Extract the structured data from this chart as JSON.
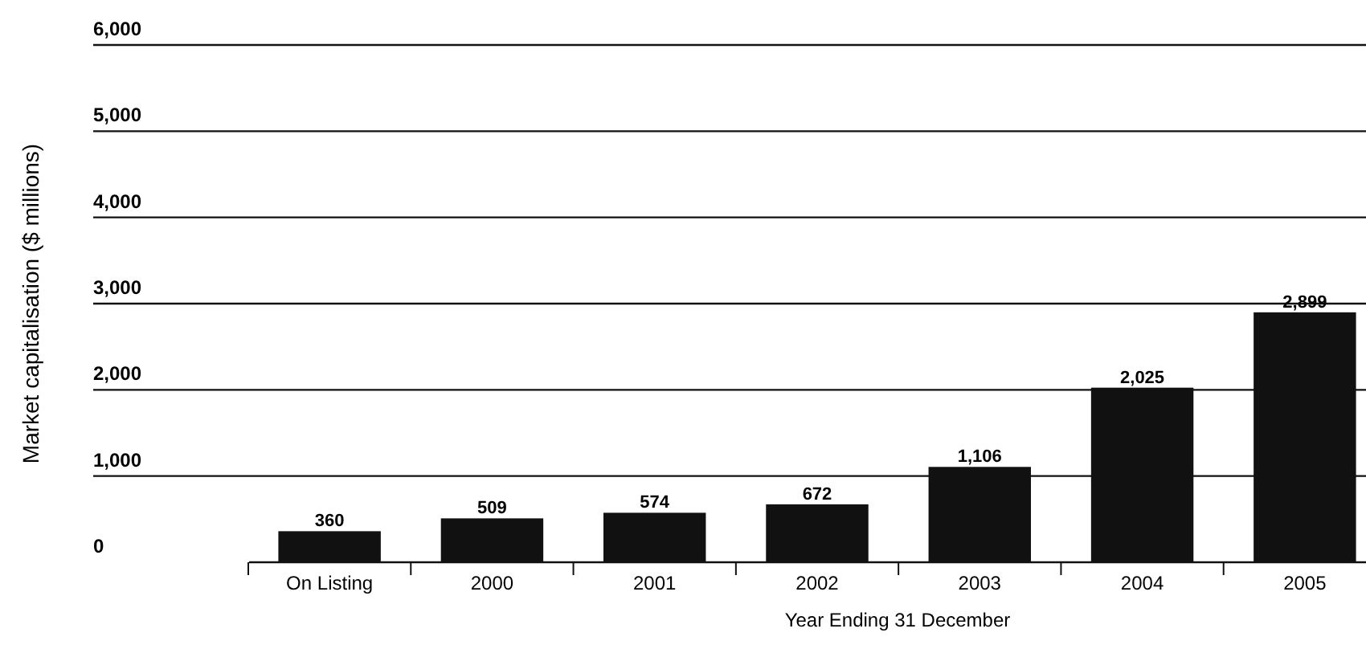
{
  "chart_data": {
    "type": "bar",
    "xlabel": "Year Ending 31 December",
    "ylabel": "Market capitalisation ($ millions)",
    "categories": [
      "On Listing",
      "2000",
      "2001",
      "2002",
      "2003",
      "2004",
      "2005"
    ],
    "values": [
      360,
      509,
      574,
      672,
      1106,
      2025,
      2899
    ],
    "color": "#111111",
    "ylim": [
      0,
      6000
    ],
    "yticks": [
      {
        "value": 0,
        "label": "0"
      },
      {
        "value": 1000,
        "label": "1,000"
      },
      {
        "value": 2000,
        "label": "2,000"
      },
      {
        "value": 3000,
        "label": "3,000"
      },
      {
        "value": 4000,
        "label": "4,000"
      },
      {
        "value": 5000,
        "label": "5,000"
      },
      {
        "value": 6000,
        "label": "6,000"
      }
    ],
    "grid": "y",
    "value_labels": [
      "360",
      "509",
      "574",
      "672",
      "1,106",
      "2,025",
      "2,899"
    ]
  }
}
